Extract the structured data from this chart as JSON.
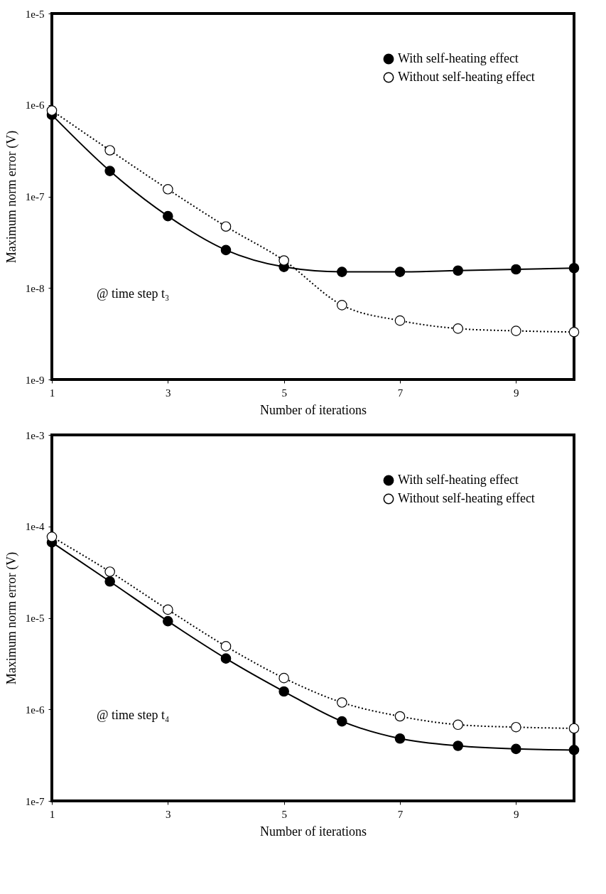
{
  "chart_data": [
    {
      "type": "line",
      "xlabel": "Number of iterations",
      "ylabel": "Maximum norm error (V)",
      "log": "y",
      "grid": false,
      "legend": "top right",
      "marker": "circle",
      "x": [
        1,
        2,
        3,
        4,
        5,
        6,
        7,
        8,
        9,
        10
      ],
      "xlim": [
        1,
        10
      ],
      "xticks": [
        1,
        3,
        5,
        7,
        9
      ],
      "ylim": [
        1e-09,
        1e-05
      ],
      "yticks": [
        {
          "value": 1e-09,
          "label": "1e-9"
        },
        {
          "value": 1e-08,
          "label": "1e-8"
        },
        {
          "value": 1e-07,
          "label": "1e-7"
        },
        {
          "value": 1e-06,
          "label": "1e-6"
        },
        {
          "value": 1e-05,
          "label": "1e-5"
        }
      ],
      "annotations": [
        "@ time step t₃"
      ],
      "series": [
        {
          "name": "With self-heating effect",
          "color": "#000000",
          "line_style": "solid",
          "values": [
            7.8e-07,
            1.9e-07,
            6.1e-08,
            2.6e-08,
            1.7e-08,
            1.5e-08,
            1.5e-08,
            1.55e-08,
            1.6e-08,
            1.65e-08
          ]
        },
        {
          "name": "Without self-heating effect",
          "color": "#000000",
          "line_style": "dotted",
          "values": [
            8.7e-07,
            3.2e-07,
            1.2e-07,
            4.7e-08,
            2e-08,
            6.5e-09,
            4.4e-09,
            3.6e-09,
            3.4e-09,
            3.3e-09
          ]
        }
      ]
    },
    {
      "type": "line",
      "xlabel": "Number of iterations",
      "ylabel": "Maximum norm error (V)",
      "log": "y",
      "grid": false,
      "legend": "top right",
      "marker": "circle",
      "x": [
        1,
        2,
        3,
        4,
        5,
        6,
        7,
        8,
        9,
        10
      ],
      "xlim": [
        1,
        10
      ],
      "xticks": [
        1,
        3,
        5,
        7,
        9
      ],
      "ylim": [
        1e-07,
        0.001
      ],
      "yticks": [
        {
          "value": 1e-07,
          "label": "1e-7"
        },
        {
          "value": 1e-06,
          "label": "1e-6"
        },
        {
          "value": 1e-05,
          "label": "1e-5"
        },
        {
          "value": 0.0001,
          "label": "1e-4"
        },
        {
          "value": 0.001,
          "label": "1e-3"
        }
      ],
      "annotations": [
        "@ time step t₄"
      ],
      "series": [
        {
          "name": "With self-heating effect",
          "color": "#000000",
          "line_style": "solid",
          "values": [
            6.7e-05,
            2.5e-05,
            9.2e-06,
            3.6e-06,
            1.57e-06,
            7.4e-07,
            4.8e-07,
            4e-07,
            3.7e-07,
            3.6e-07
          ]
        },
        {
          "name": "Without self-heating effect",
          "color": "#000000",
          "line_style": "dotted",
          "values": [
            7.7e-05,
            3.2e-05,
            1.23e-05,
            4.9e-06,
            2.2e-06,
            1.19e-06,
            8.4e-07,
            6.8e-07,
            6.4e-07,
            6.2e-07
          ]
        }
      ]
    }
  ]
}
